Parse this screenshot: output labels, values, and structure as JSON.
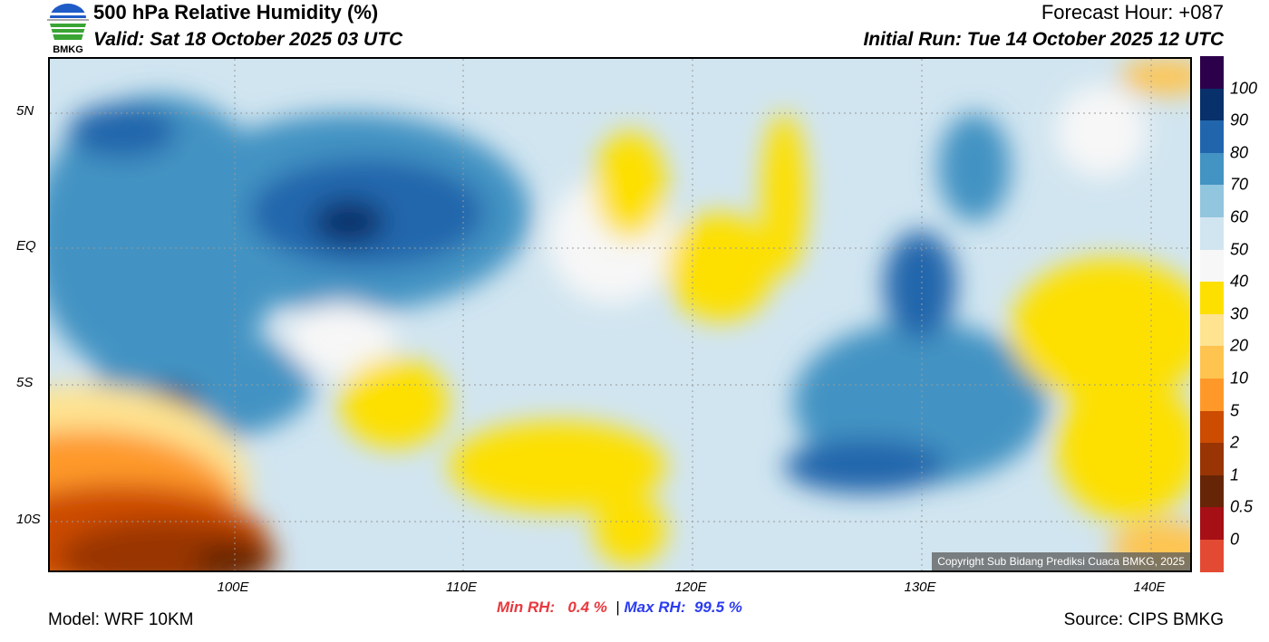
{
  "header": {
    "title": "500 hPa Relative Humidity (%)",
    "valid": "Valid: Sat 18 October 2025 03 UTC",
    "forecast_hour": "Forecast Hour: +087",
    "initial_run": "Initial Run: Tue 14 October 2025 12 UTC",
    "logo_text": "BMKG"
  },
  "axes": {
    "lat_labels": [
      "5N",
      "EQ",
      "5S",
      "10S"
    ],
    "lon_labels": [
      "100E",
      "110E",
      "120E",
      "130E",
      "140E"
    ]
  },
  "colorbar": {
    "labels": [
      "100",
      "90",
      "80",
      "70",
      "60",
      "50",
      "40",
      "30",
      "20",
      "10",
      "5",
      "2",
      "1",
      "0.5",
      "0"
    ],
    "colors": [
      "#2d004b",
      "#08306b",
      "#2166ac",
      "#4393c3",
      "#92c5de",
      "#d1e5f0",
      "#f7f7f7",
      "#fde000",
      "#fee391",
      "#fec44f",
      "#fe9929",
      "#cc4c02",
      "#993404",
      "#662506",
      "#a50f15",
      "#e34a33"
    ]
  },
  "stats": {
    "min_label": "Min RH:",
    "min_value": "0.4 %",
    "separator": "|",
    "max_label": "Max RH:",
    "max_value": "99.5 %",
    "min_color": "#e8383d",
    "max_color": "#2b3cf0"
  },
  "footer": {
    "model": "Model: WRF 10KM",
    "source": "Source: CIPS BMKG",
    "copyright": "Copyright Sub Bidang Prediksi Cuaca BMKG, 2025"
  }
}
